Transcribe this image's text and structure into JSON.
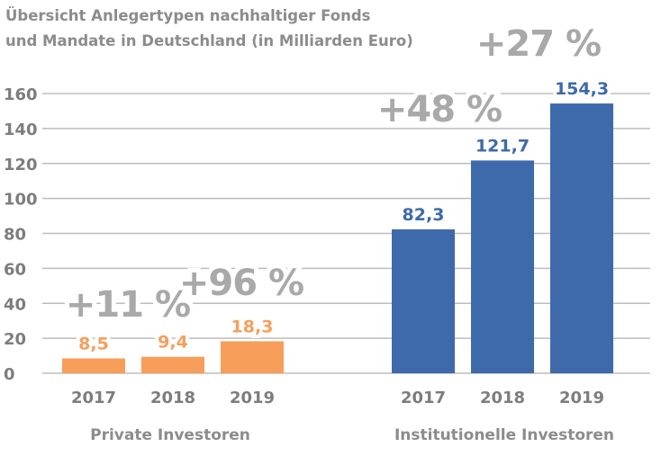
{
  "chart_data": {
    "type": "bar",
    "title_lines": [
      "Übersicht Anlegertypen nachhaltiger Fonds",
      "und Mandate in Deutschland (in Milliarden Euro)"
    ],
    "ylim": [
      0,
      160
    ],
    "yticks": [
      0,
      20,
      40,
      60,
      80,
      100,
      120,
      140,
      160
    ],
    "grid": true,
    "groups": [
      {
        "name": "Private Investoren",
        "color": "#F79E5B",
        "categories": [
          "2017",
          "2018",
          "2019"
        ],
        "values": [
          8.5,
          9.4,
          18.3
        ],
        "labels": [
          "8,5",
          "9,4",
          "18,3"
        ],
        "growth": [
          "+11 %",
          "+96 %"
        ]
      },
      {
        "name": "Institutionelle Investoren",
        "color": "#3E6AAB",
        "categories": [
          "2017",
          "2018",
          "2019"
        ],
        "values": [
          82.3,
          121.7,
          154.3
        ],
        "labels": [
          "82,3",
          "121,7",
          "154,3"
        ],
        "growth": [
          "+48 %",
          "+27 %"
        ]
      }
    ]
  }
}
